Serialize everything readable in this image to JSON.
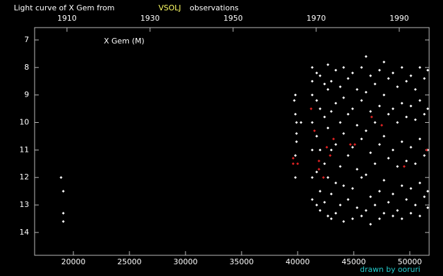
{
  "chart_data": {
    "type": "scatter",
    "title_parts": [
      "Light curve of X Gem from",
      "VSOLJ",
      "observations"
    ],
    "title_colors": [
      "#ffffff",
      "#ffff66",
      "#ffffff"
    ],
    "annotation": "X Gem (M)",
    "credit": "drawn by ooruri",
    "xlim": [
      16543,
      51728
    ],
    "xticks": [
      20000,
      25000,
      30000,
      35000,
      40000,
      45000,
      50000
    ],
    "x2lim": [
      1902.2,
      1997.2
    ],
    "x2ticks": [
      1910,
      1930,
      1950,
      1970,
      1990
    ],
    "ylim": [
      6.55,
      14.83
    ],
    "y_inverted": true,
    "yticks": [
      7,
      8,
      9,
      10,
      11,
      12,
      13,
      14
    ],
    "series": [
      {
        "color": "#ffffff",
        "x": [
          18900,
          19100,
          19100,
          19100,
          39700,
          39800,
          39800,
          39900,
          39900,
          39900,
          39800,
          39800,
          40300,
          41300,
          41300,
          41300,
          41300,
          41300,
          41300,
          41300,
          41700,
          41700,
          41700,
          41700,
          41700,
          42000,
          42000,
          42000,
          42000,
          42000,
          42400,
          42400,
          42400,
          42400,
          42700,
          42700,
          42700,
          42700,
          42700,
          43000,
          43000,
          43000,
          43000,
          43000,
          43400,
          43400,
          43400,
          43400,
          43400,
          43800,
          43800,
          43800,
          43800,
          44100,
          44100,
          44100,
          44100,
          44100,
          44500,
          44500,
          44500,
          44500,
          44900,
          44900,
          44900,
          44900,
          44900,
          45300,
          45300,
          45300,
          45300,
          45700,
          45700,
          45700,
          45700,
          45700,
          46100,
          46100,
          46100,
          46100,
          46100,
          46500,
          46500,
          46500,
          46500,
          46500,
          46900,
          46900,
          46900,
          46900,
          47300,
          47300,
          47300,
          47300,
          47300,
          47700,
          47700,
          47700,
          47700,
          47700,
          48100,
          48100,
          48100,
          48100,
          48500,
          48500,
          48500,
          48500,
          48500,
          48900,
          48900,
          48900,
          48900,
          49300,
          49300,
          49300,
          49300,
          49300,
          49700,
          49700,
          49700,
          49700,
          50100,
          50100,
          50100,
          50100,
          50100,
          50500,
          50500,
          50500,
          50500,
          50900,
          50900,
          50900,
          50900,
          50900,
          51300,
          51300,
          51300,
          51300,
          51600,
          51600,
          51600,
          51600,
          51600
        ],
        "values": [
          12.0,
          12.5,
          13.3,
          13.6,
          9.2,
          9.0,
          9.7,
          10.0,
          10.4,
          10.7,
          11.2,
          12.0,
          10.0,
          8.0,
          8.5,
          9.0,
          10.0,
          11.0,
          12.0,
          12.8,
          8.2,
          9.2,
          10.5,
          11.8,
          13.0,
          8.3,
          9.5,
          11.0,
          12.5,
          13.2,
          8.6,
          9.8,
          11.5,
          12.9,
          7.9,
          8.8,
          10.2,
          12.0,
          13.4,
          8.5,
          9.6,
          11.0,
          12.6,
          13.5,
          8.1,
          9.3,
          10.8,
          12.2,
          13.3,
          8.7,
          10.0,
          11.6,
          13.0,
          8.0,
          9.1,
          10.4,
          12.3,
          13.6,
          8.4,
          9.7,
          11.2,
          12.8,
          8.2,
          9.5,
          10.9,
          12.4,
          13.5,
          8.8,
          10.1,
          11.7,
          13.1,
          8.0,
          9.2,
          10.6,
          12.0,
          13.4,
          7.6,
          8.9,
          10.3,
          11.9,
          13.2,
          8.3,
          9.6,
          11.1,
          12.7,
          13.7,
          8.6,
          10.0,
          11.5,
          13.0,
          8.1,
          9.4,
          10.8,
          12.5,
          13.5,
          7.8,
          9.0,
          10.5,
          12.1,
          13.3,
          8.4,
          9.7,
          11.3,
          12.9,
          8.2,
          9.5,
          11.0,
          12.6,
          13.4,
          8.7,
          10.0,
          11.6,
          13.2,
          8.0,
          9.3,
          10.7,
          12.3,
          13.5,
          8.5,
          9.8,
          11.4,
          12.8,
          8.3,
          9.4,
          10.9,
          12.4,
          13.3,
          8.8,
          9.9,
          11.5,
          13.0,
          8.0,
          9.2,
          10.6,
          12.2,
          13.4,
          8.4,
          9.7,
          11.2,
          12.7,
          8.1,
          9.5,
          11.0,
          12.5,
          13.1
        ]
      },
      {
        "color": "#dd2222",
        "x": [
          39600,
          39600,
          40000,
          41200,
          41500,
          41900,
          41900,
          42300,
          42600,
          42900,
          43200,
          44700,
          45100,
          46600,
          47500,
          49500,
          51500
        ],
        "values": [
          11.3,
          11.5,
          11.5,
          9.5,
          10.3,
          11.4,
          11.7,
          12.0,
          10.9,
          11.2,
          10.6,
          10.8,
          10.8,
          9.8,
          10.1,
          11.6,
          11.0
        ]
      }
    ]
  }
}
